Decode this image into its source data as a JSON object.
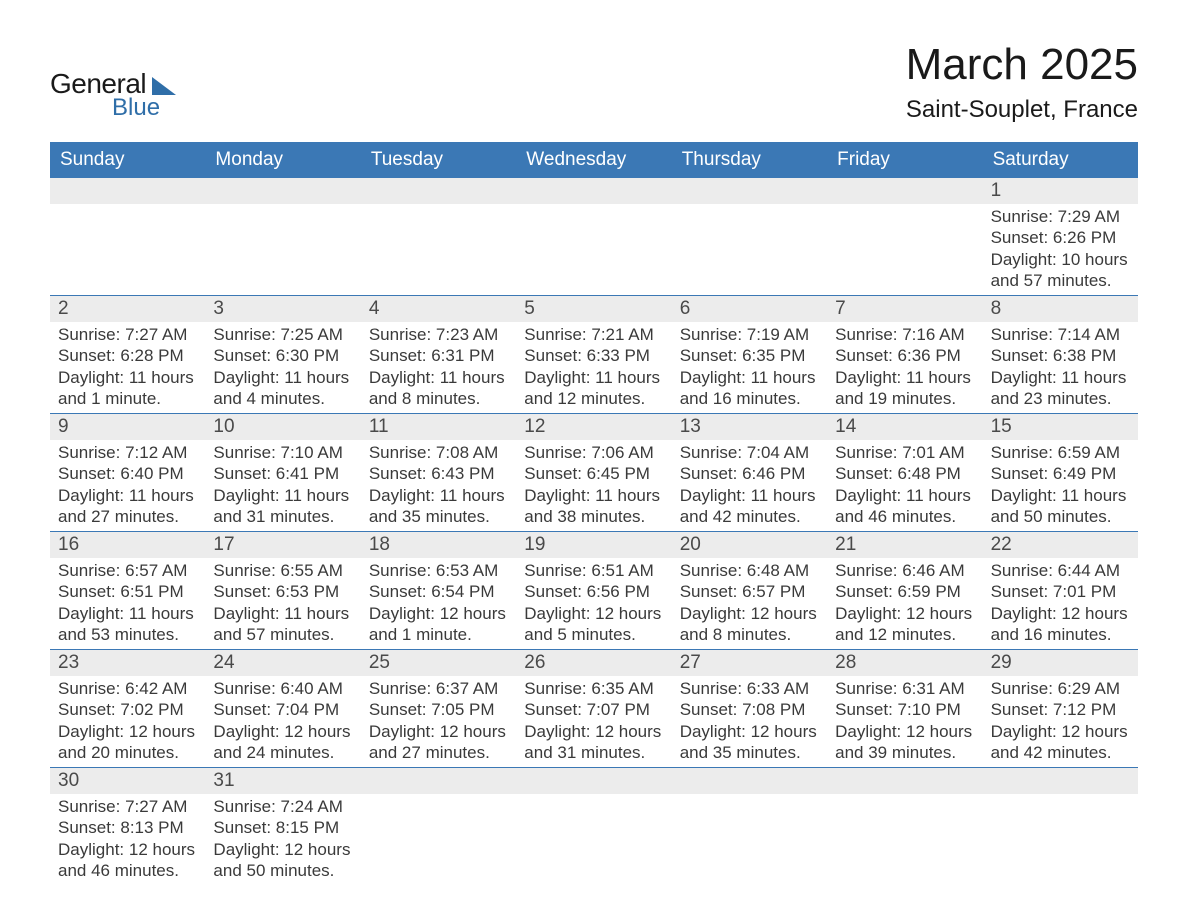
{
  "brand": {
    "line1": "General",
    "line2": "Blue",
    "accent_color": "#2f6ea8"
  },
  "title": "March 2025",
  "location": "Saint-Souplet, France",
  "colors": {
    "header_bg": "#3b78b5",
    "header_fg": "#ffffff",
    "daynum_bg": "#ececec",
    "daynum_fg": "#4a4a4a",
    "body_fg": "#3a3a3a",
    "week_border": "#3b78b5",
    "page_bg": "#ffffff"
  },
  "typography": {
    "title_fontsize": 44,
    "location_fontsize": 24,
    "dow_fontsize": 19,
    "daynum_fontsize": 19,
    "body_fontsize": 17,
    "font_family": "Arial"
  },
  "days_of_week": [
    "Sunday",
    "Monday",
    "Tuesday",
    "Wednesday",
    "Thursday",
    "Friday",
    "Saturday"
  ],
  "weeks": [
    [
      {
        "day": "",
        "sunrise": "",
        "sunset": "",
        "daylight": ""
      },
      {
        "day": "",
        "sunrise": "",
        "sunset": "",
        "daylight": ""
      },
      {
        "day": "",
        "sunrise": "",
        "sunset": "",
        "daylight": ""
      },
      {
        "day": "",
        "sunrise": "",
        "sunset": "",
        "daylight": ""
      },
      {
        "day": "",
        "sunrise": "",
        "sunset": "",
        "daylight": ""
      },
      {
        "day": "",
        "sunrise": "",
        "sunset": "",
        "daylight": ""
      },
      {
        "day": "1",
        "sunrise": "Sunrise: 7:29 AM",
        "sunset": "Sunset: 6:26 PM",
        "daylight": "Daylight: 10 hours and 57 minutes."
      }
    ],
    [
      {
        "day": "2",
        "sunrise": "Sunrise: 7:27 AM",
        "sunset": "Sunset: 6:28 PM",
        "daylight": "Daylight: 11 hours and 1 minute."
      },
      {
        "day": "3",
        "sunrise": "Sunrise: 7:25 AM",
        "sunset": "Sunset: 6:30 PM",
        "daylight": "Daylight: 11 hours and 4 minutes."
      },
      {
        "day": "4",
        "sunrise": "Sunrise: 7:23 AM",
        "sunset": "Sunset: 6:31 PM",
        "daylight": "Daylight: 11 hours and 8 minutes."
      },
      {
        "day": "5",
        "sunrise": "Sunrise: 7:21 AM",
        "sunset": "Sunset: 6:33 PM",
        "daylight": "Daylight: 11 hours and 12 minutes."
      },
      {
        "day": "6",
        "sunrise": "Sunrise: 7:19 AM",
        "sunset": "Sunset: 6:35 PM",
        "daylight": "Daylight: 11 hours and 16 minutes."
      },
      {
        "day": "7",
        "sunrise": "Sunrise: 7:16 AM",
        "sunset": "Sunset: 6:36 PM",
        "daylight": "Daylight: 11 hours and 19 minutes."
      },
      {
        "day": "8",
        "sunrise": "Sunrise: 7:14 AM",
        "sunset": "Sunset: 6:38 PM",
        "daylight": "Daylight: 11 hours and 23 minutes."
      }
    ],
    [
      {
        "day": "9",
        "sunrise": "Sunrise: 7:12 AM",
        "sunset": "Sunset: 6:40 PM",
        "daylight": "Daylight: 11 hours and 27 minutes."
      },
      {
        "day": "10",
        "sunrise": "Sunrise: 7:10 AM",
        "sunset": "Sunset: 6:41 PM",
        "daylight": "Daylight: 11 hours and 31 minutes."
      },
      {
        "day": "11",
        "sunrise": "Sunrise: 7:08 AM",
        "sunset": "Sunset: 6:43 PM",
        "daylight": "Daylight: 11 hours and 35 minutes."
      },
      {
        "day": "12",
        "sunrise": "Sunrise: 7:06 AM",
        "sunset": "Sunset: 6:45 PM",
        "daylight": "Daylight: 11 hours and 38 minutes."
      },
      {
        "day": "13",
        "sunrise": "Sunrise: 7:04 AM",
        "sunset": "Sunset: 6:46 PM",
        "daylight": "Daylight: 11 hours and 42 minutes."
      },
      {
        "day": "14",
        "sunrise": "Sunrise: 7:01 AM",
        "sunset": "Sunset: 6:48 PM",
        "daylight": "Daylight: 11 hours and 46 minutes."
      },
      {
        "day": "15",
        "sunrise": "Sunrise: 6:59 AM",
        "sunset": "Sunset: 6:49 PM",
        "daylight": "Daylight: 11 hours and 50 minutes."
      }
    ],
    [
      {
        "day": "16",
        "sunrise": "Sunrise: 6:57 AM",
        "sunset": "Sunset: 6:51 PM",
        "daylight": "Daylight: 11 hours and 53 minutes."
      },
      {
        "day": "17",
        "sunrise": "Sunrise: 6:55 AM",
        "sunset": "Sunset: 6:53 PM",
        "daylight": "Daylight: 11 hours and 57 minutes."
      },
      {
        "day": "18",
        "sunrise": "Sunrise: 6:53 AM",
        "sunset": "Sunset: 6:54 PM",
        "daylight": "Daylight: 12 hours and 1 minute."
      },
      {
        "day": "19",
        "sunrise": "Sunrise: 6:51 AM",
        "sunset": "Sunset: 6:56 PM",
        "daylight": "Daylight: 12 hours and 5 minutes."
      },
      {
        "day": "20",
        "sunrise": "Sunrise: 6:48 AM",
        "sunset": "Sunset: 6:57 PM",
        "daylight": "Daylight: 12 hours and 8 minutes."
      },
      {
        "day": "21",
        "sunrise": "Sunrise: 6:46 AM",
        "sunset": "Sunset: 6:59 PM",
        "daylight": "Daylight: 12 hours and 12 minutes."
      },
      {
        "day": "22",
        "sunrise": "Sunrise: 6:44 AM",
        "sunset": "Sunset: 7:01 PM",
        "daylight": "Daylight: 12 hours and 16 minutes."
      }
    ],
    [
      {
        "day": "23",
        "sunrise": "Sunrise: 6:42 AM",
        "sunset": "Sunset: 7:02 PM",
        "daylight": "Daylight: 12 hours and 20 minutes."
      },
      {
        "day": "24",
        "sunrise": "Sunrise: 6:40 AM",
        "sunset": "Sunset: 7:04 PM",
        "daylight": "Daylight: 12 hours and 24 minutes."
      },
      {
        "day": "25",
        "sunrise": "Sunrise: 6:37 AM",
        "sunset": "Sunset: 7:05 PM",
        "daylight": "Daylight: 12 hours and 27 minutes."
      },
      {
        "day": "26",
        "sunrise": "Sunrise: 6:35 AM",
        "sunset": "Sunset: 7:07 PM",
        "daylight": "Daylight: 12 hours and 31 minutes."
      },
      {
        "day": "27",
        "sunrise": "Sunrise: 6:33 AM",
        "sunset": "Sunset: 7:08 PM",
        "daylight": "Daylight: 12 hours and 35 minutes."
      },
      {
        "day": "28",
        "sunrise": "Sunrise: 6:31 AM",
        "sunset": "Sunset: 7:10 PM",
        "daylight": "Daylight: 12 hours and 39 minutes."
      },
      {
        "day": "29",
        "sunrise": "Sunrise: 6:29 AM",
        "sunset": "Sunset: 7:12 PM",
        "daylight": "Daylight: 12 hours and 42 minutes."
      }
    ],
    [
      {
        "day": "30",
        "sunrise": "Sunrise: 7:27 AM",
        "sunset": "Sunset: 8:13 PM",
        "daylight": "Daylight: 12 hours and 46 minutes."
      },
      {
        "day": "31",
        "sunrise": "Sunrise: 7:24 AM",
        "sunset": "Sunset: 8:15 PM",
        "daylight": "Daylight: 12 hours and 50 minutes."
      },
      {
        "day": "",
        "sunrise": "",
        "sunset": "",
        "daylight": ""
      },
      {
        "day": "",
        "sunrise": "",
        "sunset": "",
        "daylight": ""
      },
      {
        "day": "",
        "sunrise": "",
        "sunset": "",
        "daylight": ""
      },
      {
        "day": "",
        "sunrise": "",
        "sunset": "",
        "daylight": ""
      },
      {
        "day": "",
        "sunrise": "",
        "sunset": "",
        "daylight": ""
      }
    ]
  ]
}
